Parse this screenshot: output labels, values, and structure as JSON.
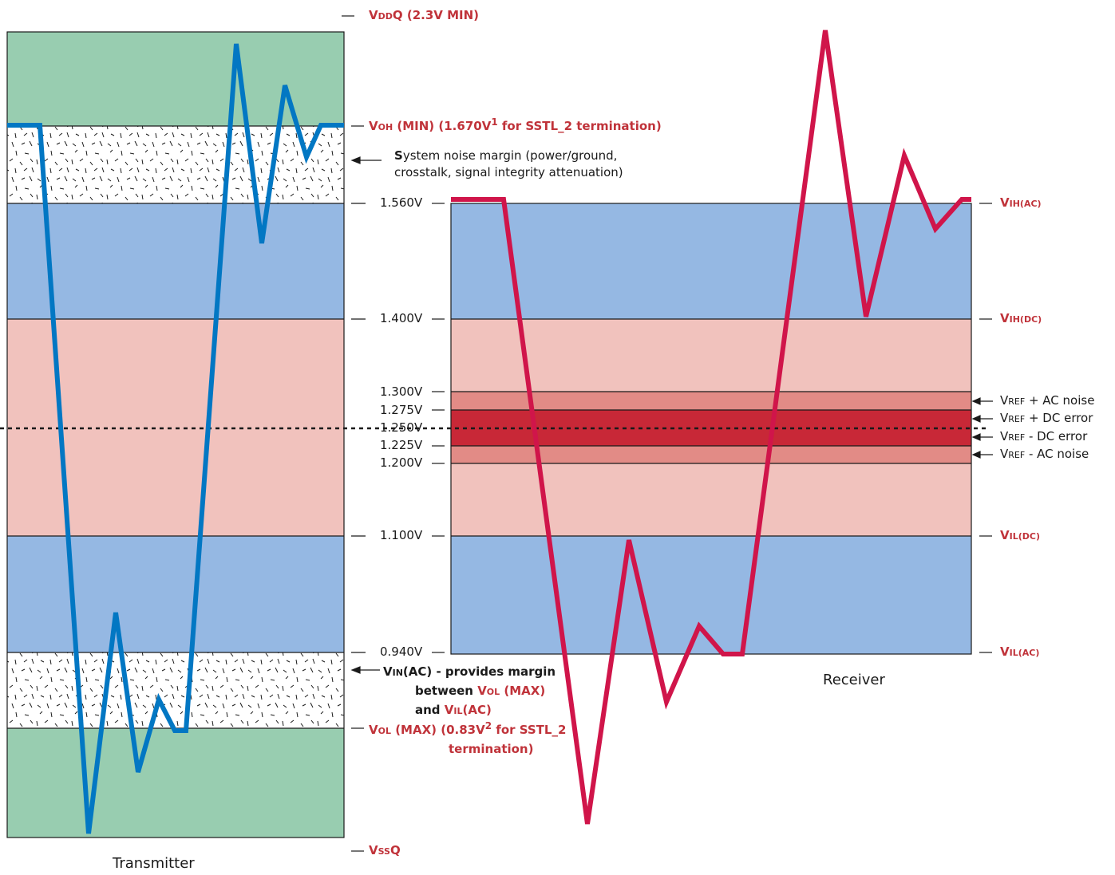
{
  "tx_title": "Transmitter",
  "rx_title": "Receiver",
  "volts": {
    "v1560": "1.560V",
    "v1400": "1.400V",
    "v1300": "1.300V",
    "v1275": "1.275V",
    "v1250": "1.250V",
    "v1225": "1.225V",
    "v1200": "1.200V",
    "v1100": "1.100V",
    "v0940": "0.940V"
  },
  "labels": {
    "vddq_main": "V",
    "vddq_sub": "DD",
    "vddq_rest": "Q (2.3V MIN)",
    "voh_main": "V",
    "voh_sub": "OH",
    "voh_rest": " (MIN) (1.670V",
    "voh_sup": "1",
    "voh_tail": " for SSTL_2 termination)",
    "noise_s": "S",
    "noise_line1": "ystem noise margin (power/ground,",
    "noise_line2": "crosstalk, signal integrity attenuation)",
    "vin_main": "V",
    "vin_sub": "IN",
    "vin_rest": "(AC) - provides margin",
    "vin_line2": "between ",
    "vin_vol_main": "V",
    "vin_vol_sub": "OL",
    "vin_vol_rest": " (MAX)",
    "vin_line3": "and ",
    "vin_vil_main": "V",
    "vin_vil_sub": "IL",
    "vin_vil_rest": "(AC)",
    "vol_main": "V",
    "vol_sub": "OL",
    "vol_rest": "  (MAX) (0.83V",
    "vol_sup": "2",
    "vol_tail": " for SSTL_2",
    "vol_line2": "termination)",
    "vssq_main": "V",
    "vssq_sub": "SS",
    "vssq_rest": "Q",
    "vihac_main": "V",
    "vihac_sub": "IH",
    "vihac_rest": "(AC)",
    "vihdc_main": "V",
    "vihdc_sub": "IH",
    "vihdc_rest": "(DC)",
    "vref_main": "V",
    "vref_sub": "REF",
    "vref_ac_plus": " + AC noise",
    "vref_dc_plus": " + DC error",
    "vref_dc_minus": " - DC error",
    "vref_ac_minus": " - AC noise",
    "vildc_main": "V",
    "vildc_sub": "IL",
    "vildc_rest": "(DC)",
    "vilac_main": "V",
    "vilac_sub": "IL",
    "vilac_rest": "(AC)"
  },
  "colors": {
    "green": "#98cdb0",
    "blue": "#95b8e3",
    "pink": "#f1c2bd",
    "band_outer": "#e28b86",
    "band_inner": "#c82837",
    "tx_wave": "#0277c3",
    "rx_wave": "#d0154a",
    "label_red": "#c0333a"
  }
}
